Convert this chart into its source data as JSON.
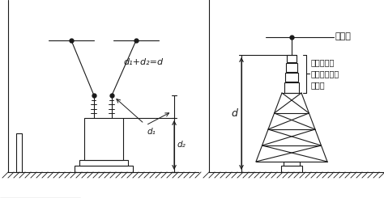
{
  "bg_color": "#ffffff",
  "line_color": "#1a1a1a",
  "label_d1d2": "d₁+d₂=d",
  "label_d1": "d₁",
  "label_d2": "d₂",
  "label_d": "d",
  "label_denki": "送電線",
  "label_condenser": "コンデンサ\n（がいし形）\nのもの"
}
